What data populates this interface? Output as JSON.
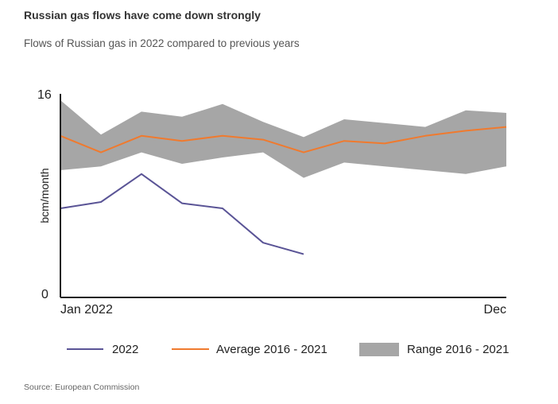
{
  "header": {
    "title": "Russian gas flows have come down strongly",
    "subtitle": "Flows of Russian gas in 2022 compared to previous years"
  },
  "source": "Source: European Commission",
  "colors": {
    "series_2022": "#5a5496",
    "average": "#f07a2e",
    "range": "#a6a6a6",
    "axis": "#222222"
  },
  "chart_data": {
    "type": "line",
    "title": "",
    "xlabel": "",
    "ylabel": "bcm/month",
    "ylim": [
      0,
      16
    ],
    "y_tick_labels": [
      "16",
      "0"
    ],
    "x_tick_labels": [
      "Jan 2022",
      "Dec"
    ],
    "x": [
      1,
      2,
      3,
      4,
      5,
      6,
      7,
      8,
      9,
      10,
      11,
      12
    ],
    "series": [
      {
        "name": "2022",
        "values": [
          7.0,
          7.5,
          9.7,
          7.4,
          7.0,
          4.3,
          3.4,
          null,
          null,
          null,
          null,
          null
        ]
      },
      {
        "name": "Average  2016 - 2021",
        "values": [
          12.7,
          11.4,
          12.7,
          12.3,
          12.7,
          12.4,
          11.4,
          12.3,
          12.1,
          12.7,
          13.1,
          13.4
        ]
      }
    ],
    "range": {
      "name": "Range 2016 - 2021",
      "upper": [
        15.5,
        12.8,
        14.6,
        14.2,
        15.2,
        13.8,
        12.6,
        14.0,
        13.7,
        13.4,
        14.7,
        14.5
      ],
      "lower": [
        10.0,
        10.3,
        11.4,
        10.5,
        11.0,
        11.4,
        9.4,
        10.6,
        10.3,
        10.0,
        9.7,
        10.3
      ]
    },
    "legend": [
      "2022",
      "Average  2016 - 2021",
      "Range 2016 - 2021"
    ],
    "legend_position": "bottom",
    "grid": false
  }
}
